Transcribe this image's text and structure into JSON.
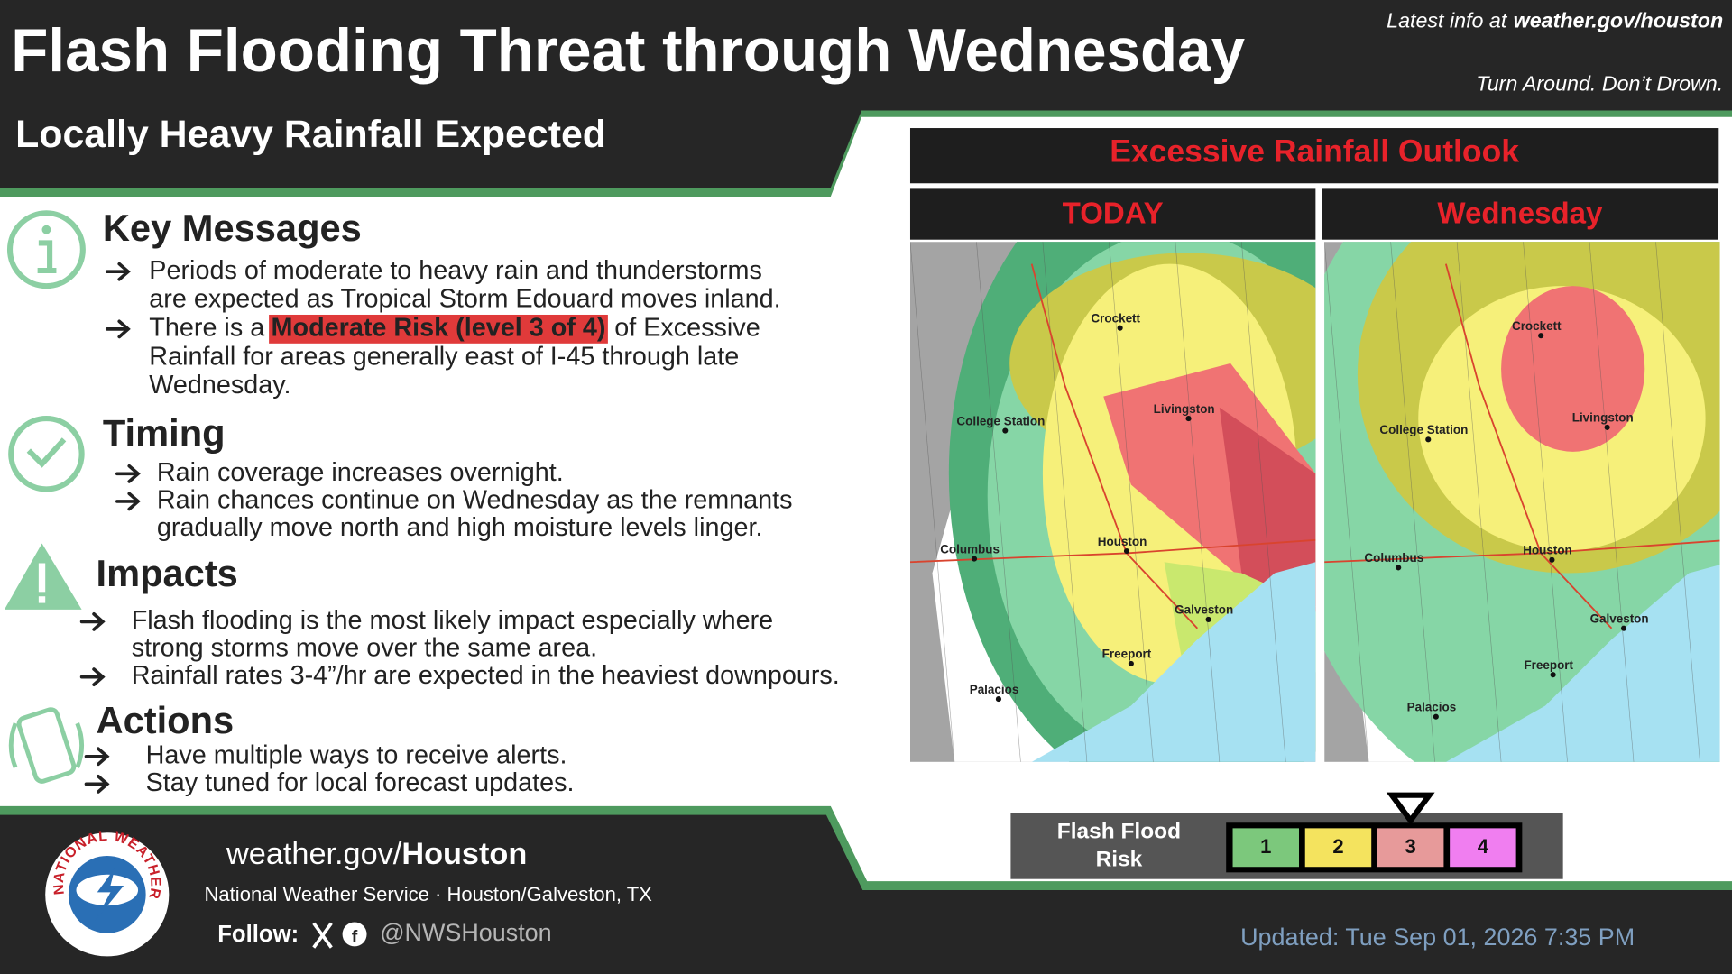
{
  "header": {
    "title": "Flash Flooding Threat through Wednesday",
    "latest_info": "Latest info at",
    "latest_site": "weather.gov/houston",
    "slogan": "Turn Around. Don’t Drown.",
    "subtitle": "Locally Heavy Rainfall Expected"
  },
  "sections": [
    {
      "heading": "Key Messages",
      "bullets": [
        [
          "Periods of moderate to heavy rain and thunderstorms",
          "are expected as Tropical Storm Edouard moves inland."
        ],
        [
          {
            "before": "There is a",
            "highlight": "Moderate Risk (level 3 of 4)",
            "after": "of Excessive"
          },
          "Rainfall for areas generally east of I-45 through late",
          "Wednesday."
        ]
      ]
    },
    {
      "heading": "Timing",
      "bullets": [
        [
          "Rain coverage increases overnight."
        ],
        [
          "Rain chances continue on Wednesday as the remnants",
          "gradually move north and high moisture levels linger."
        ]
      ]
    },
    {
      "heading": "Impacts",
      "bullets": [
        [
          "Flash flooding is the most likely impact especially where",
          "strong storms move over the same area."
        ],
        [
          "Rainfall rates 3-4”/hr are expected in the heaviest downpours."
        ]
      ]
    },
    {
      "heading": "Actions",
      "bullets": [
        [
          "Have multiple ways to receive alerts."
        ],
        [
          "Stay tuned for local forecast updates."
        ]
      ]
    }
  ],
  "outlook": {
    "title": "Excessive Rainfall Outlook",
    "panels": [
      {
        "label": "TODAY",
        "cities": [
          "Crockett",
          "Livingston",
          "College Station",
          "Houston",
          "Columbus",
          "Galveston",
          "Freeport",
          "Palacios"
        ]
      },
      {
        "label": "Wednesday",
        "cities": [
          "Crockett",
          "Livingston",
          "College Station",
          "Houston",
          "Columbus",
          "Galveston",
          "Freeport",
          "Palacios"
        ]
      }
    ]
  },
  "legend": {
    "label": [
      "Flash Flood",
      "Risk"
    ],
    "levels": [
      1,
      2,
      3,
      4
    ],
    "current_level": 3
  },
  "footer": {
    "logo_text": "NATIONAL WEATHER SERVICE",
    "site_prefix": "weather.gov/",
    "site_name": "Houston",
    "office": "National Weather Service · Houston/Galveston, TX",
    "follow": "Follow:",
    "handle": "@NWSHouston",
    "updated": "Updated: Tue Sep 01, 2026 7:35 PM"
  }
}
